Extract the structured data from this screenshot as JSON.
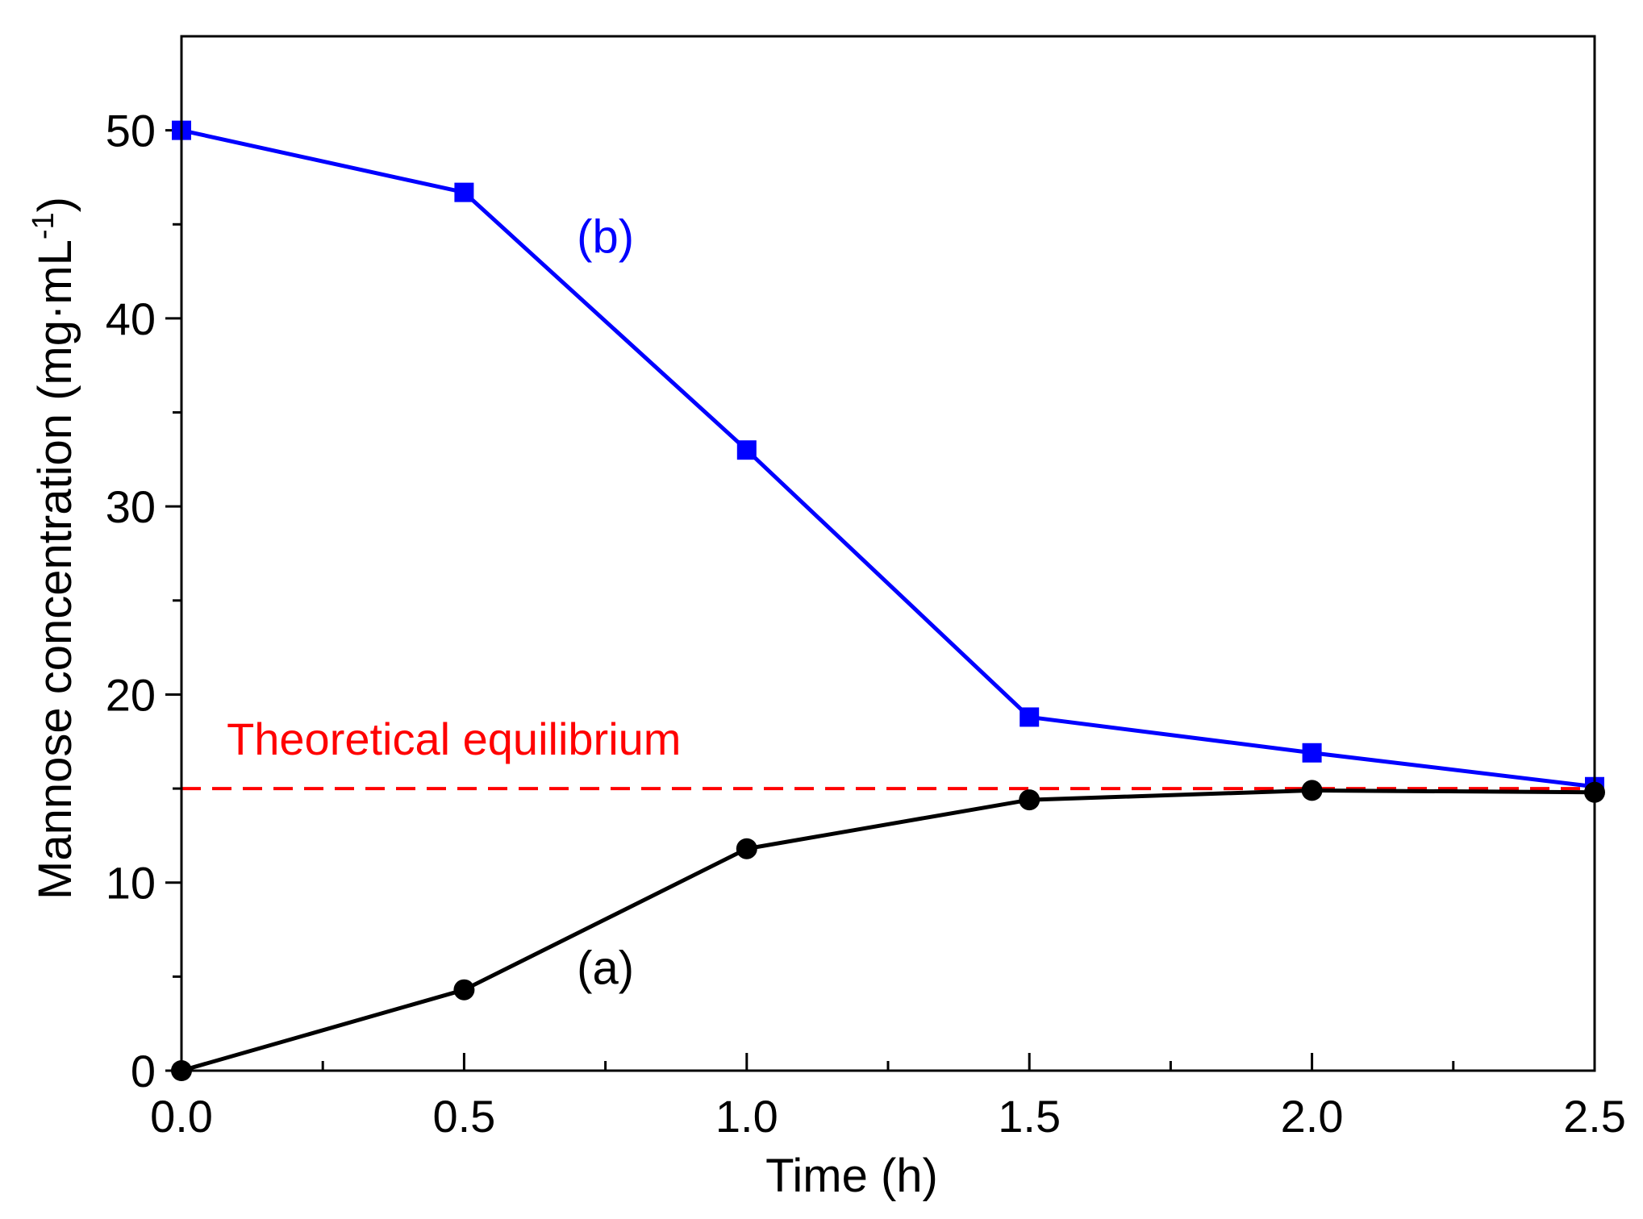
{
  "chart_data": {
    "type": "line",
    "title": "",
    "xlabel": "Time (h)",
    "ylabel_main": "Mannose concentration (mg·mL",
    "ylabel_sup": "-1",
    "ylabel_close": ")",
    "xlim": [
      0,
      2.5
    ],
    "ylim": [
      0,
      55
    ],
    "x_ticks": [
      0.0,
      0.5,
      1.0,
      1.5,
      2.0,
      2.5
    ],
    "x_tick_labels": [
      "0.0",
      "0.5",
      "1.0",
      "1.5",
      "2.0",
      "2.5"
    ],
    "x_minor_ticks": [
      0.25,
      0.75,
      1.25,
      1.75,
      2.25
    ],
    "y_ticks": [
      0,
      10,
      20,
      30,
      40,
      50
    ],
    "y_tick_labels": [
      "0",
      "10",
      "20",
      "30",
      "40",
      "50"
    ],
    "y_minor_ticks": [
      5,
      15,
      25,
      35,
      45
    ],
    "grid": false,
    "series": [
      {
        "name": "(b)",
        "color": "#0000ff",
        "marker": "square",
        "x": [
          0.0,
          0.5,
          1.0,
          1.5,
          2.0,
          2.5
        ],
        "y": [
          50.0,
          46.7,
          33.0,
          18.8,
          16.9,
          15.1
        ],
        "label_pos": [
          0.75,
          43.5
        ]
      },
      {
        "name": "(a)",
        "color": "#000000",
        "marker": "circle",
        "x": [
          0.0,
          0.5,
          1.0,
          1.5,
          2.0,
          2.5
        ],
        "y": [
          0.0,
          4.3,
          11.8,
          14.4,
          14.9,
          14.8
        ],
        "label_pos": [
          0.75,
          4.6
        ]
      }
    ],
    "reference_line": {
      "label": "Theoretical equilibrium",
      "y": 15.0,
      "color": "#ff0000",
      "style": "dashed",
      "label_pos": [
        0.08,
        16.8
      ]
    }
  }
}
